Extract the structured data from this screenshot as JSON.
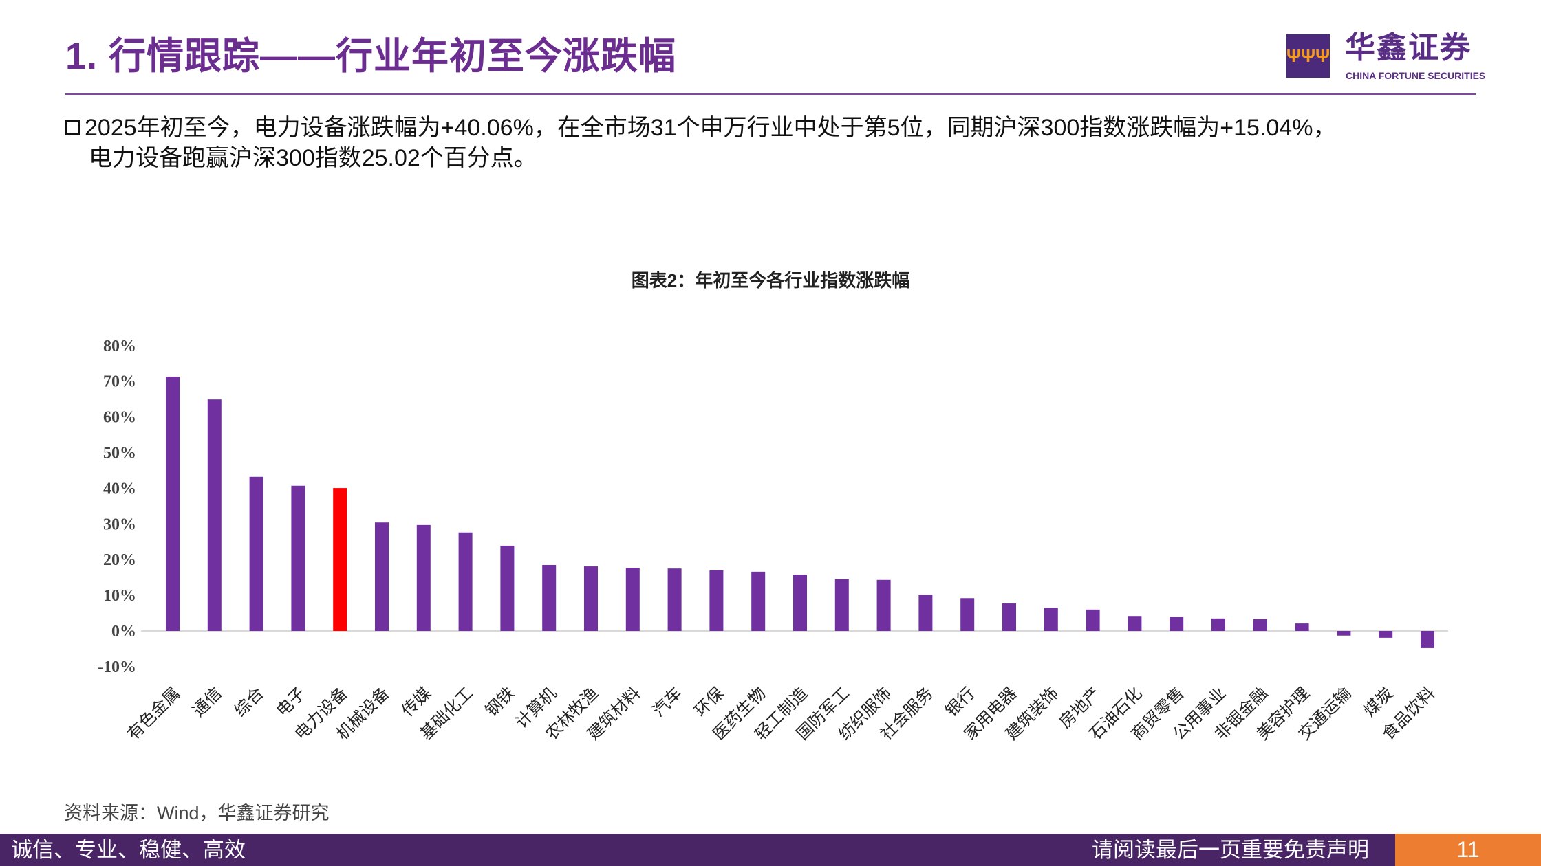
{
  "header": {
    "title": "1. 行情跟踪——行业年初至今涨跌幅",
    "logo_cn": "华鑫证券",
    "logo_en": "CHINA FORTUNE SECURITIES"
  },
  "body": {
    "line1": "2025年初至今，电力设备涨跌幅为+40.06%，在全市场31个申万行业中处于第5位，同期沪深300指数涨跌幅为+15.04%，",
    "line2": "电力设备跑赢沪深300指数25.02个百分点。"
  },
  "chart_data": {
    "type": "bar",
    "title": "图表2：年初至今各行业指数涨跌幅",
    "categories": [
      "有色金属",
      "通信",
      "综合",
      "电子",
      "电力设备",
      "机械设备",
      "传媒",
      "基础化工",
      "钢铁",
      "计算机",
      "农林牧渔",
      "建筑材料",
      "汽车",
      "环保",
      "医药生物",
      "轻工制造",
      "国防军工",
      "纺织服饰",
      "社会服务",
      "银行",
      "家用电器",
      "建筑装饰",
      "房地产",
      "石油石化",
      "商贸零售",
      "公用事业",
      "非银金融",
      "美容护理",
      "交通运输",
      "煤炭",
      "食品饮料"
    ],
    "values": [
      71.3,
      64.9,
      43.2,
      40.7,
      40.06,
      30.4,
      29.7,
      27.6,
      23.9,
      18.5,
      18.1,
      17.7,
      17.5,
      17.0,
      16.6,
      15.8,
      14.5,
      14.3,
      10.2,
      9.2,
      7.7,
      6.5,
      6.0,
      4.2,
      4.0,
      3.5,
      3.3,
      2.1,
      -1.3,
      -1.9,
      -4.8
    ],
    "highlight_category": "电力设备",
    "yticks": [
      "-10%",
      "0%",
      "10%",
      "20%",
      "30%",
      "40%",
      "50%",
      "60%",
      "70%",
      "80%"
    ],
    "ylim": [
      -10,
      80
    ],
    "unit": "%",
    "grid": false,
    "colors": {
      "bar": "#7030A0",
      "highlight": "#FF0000",
      "axis": "#D9D9D9"
    }
  },
  "source": "资料来源：Wind，华鑫证券研究",
  "footer": {
    "left": "诚信、专业、稳健、高效",
    "right": "请阅读最后一页重要免责声明",
    "page": "11"
  }
}
